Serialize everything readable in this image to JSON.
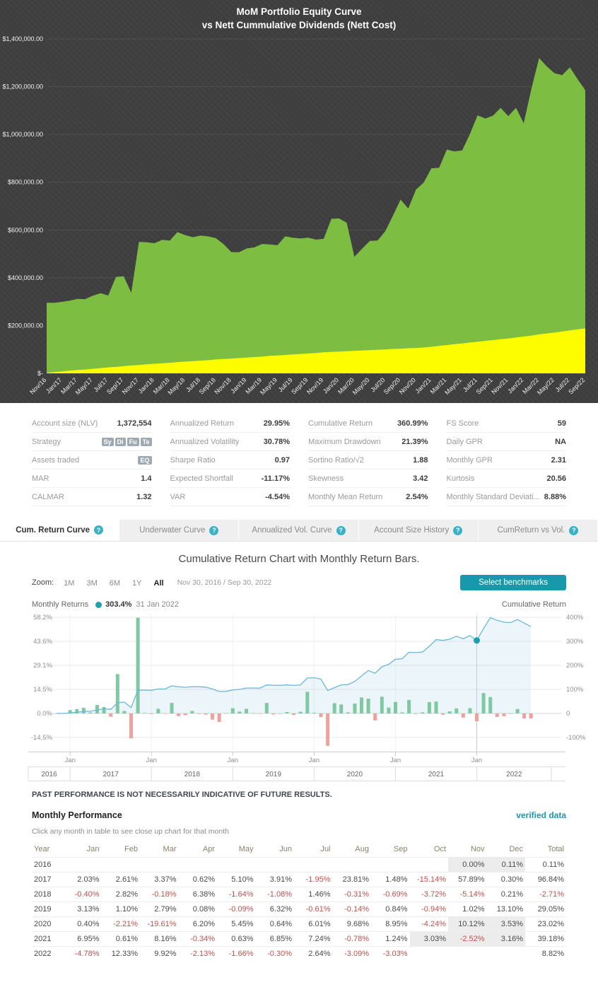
{
  "equity_title": {
    "line1": "MoM Portfolio Equity Curve",
    "line2": "vs Nett Cummulative Dividends (Nett Cost)"
  },
  "chart_data": [
    {
      "id": "equity-curve-chart",
      "type": "area",
      "title": "MoM Portfolio Equity Curve vs Nett Cummulative Dividends (Nett Cost)",
      "ylim": [
        0,
        1400000
      ],
      "y_tick_labels": [
        "$1,400,000.00",
        "$1,200,000.00",
        "$1,000,000.00",
        "$800,000.00",
        "$600,000.00",
        "$400,000.00",
        "$200,000.00",
        "$-"
      ],
      "x_labels_shown": [
        "Nov/16",
        "Jan/17",
        "Mar/17",
        "May/17",
        "Jul/17",
        "Sep/17",
        "Nov/17",
        "Jan/18",
        "Mar/18",
        "May/18",
        "Jul/18",
        "Sep/18",
        "Nov/18",
        "Jan/19",
        "Mar/19",
        "May/19",
        "Jul/19",
        "Sep/19",
        "Nov/19",
        "Jan/20",
        "Mar/20",
        "May/20",
        "Jul/20",
        "Sep/20",
        "Nov/20",
        "Jan/21",
        "Mar/21",
        "May/21",
        "Jul/21",
        "Sep/21",
        "Nov/21",
        "Jan/22",
        "Mar/22",
        "May/22",
        "Jul/22",
        "Sep/22"
      ],
      "interval": "monthly",
      "series": [
        {
          "name": "Portfolio Equity",
          "color": "#7cbd42",
          "values_k": [
            295.7,
            295.1,
            299.1,
            304.1,
            311.6,
            310.6,
            325.1,
            335.5,
            325.5,
            403.3,
            406.7,
            337.5,
            550.1,
            548.8,
            544.5,
            558.9,
            555.9,
            591.1,
            578.7,
            569.9,
            576.9,
            573.0,
            565.7,
            540.4,
            507.6,
            506.8,
            522.6,
            527.1,
            541.7,
            539.2,
            536.7,
            573.3,
            567.4,
            564.5,
            567.9,
            559.8,
            563.4,
            646.7,
            648.6,
            630.3,
            487.5,
            521.5,
            554.2,
            556.3,
            594.7,
            659.9,
            727.2,
            689.9,
            769.4,
            798.3,
            858.3,
            860.2,
            936.8,
            929.2,
            932.8,
            1001.3,
            1080.1,
            1066.7,
            1078.6,
            1111.5,
            1076.9,
            1111.5,
            1047.2,
            1191.3,
            1320.2,
            1284.6,
            1256.5,
            1248.2,
            1280.8,
            1231.6,
            1184.7
          ]
        },
        {
          "name": "Nett Cummulative Dividends",
          "color": "#fdfd00",
          "values_k": [
            2,
            5,
            8,
            11,
            14,
            16,
            19,
            22,
            25,
            27,
            30,
            33,
            35,
            38,
            40,
            42,
            44,
            47,
            49,
            51,
            53,
            55,
            58,
            60,
            62,
            64,
            66,
            68,
            70,
            73,
            75,
            77,
            79,
            81,
            83,
            85,
            88,
            90,
            91,
            93,
            94,
            96,
            97,
            99,
            100,
            102,
            103,
            105,
            106,
            108,
            111,
            115,
            118,
            122,
            125,
            129,
            132,
            136,
            139,
            143,
            146,
            150,
            154,
            158,
            163,
            167,
            171,
            175,
            180,
            184,
            188
          ]
        }
      ]
    },
    {
      "id": "cumulative-return-chart",
      "type": "bar+line",
      "title": "Cumulative Return Chart with Monthly Return Bars.",
      "bar_series_name": "Monthly Returns",
      "line_series_name": "Cumulative Return",
      "bar_values_pct": [
        0.0,
        0.11,
        2.03,
        2.61,
        3.37,
        0.62,
        5.1,
        3.91,
        -1.95,
        23.81,
        1.48,
        -15.14,
        57.89,
        0.3,
        -0.4,
        2.82,
        -0.18,
        6.38,
        -1.64,
        -1.08,
        1.46,
        -0.31,
        -0.69,
        -3.72,
        -5.14,
        0.21,
        3.13,
        1.1,
        2.79,
        0.08,
        -0.09,
        6.32,
        -0.61,
        -0.14,
        0.84,
        -0.94,
        1.02,
        13.1,
        0.4,
        -2.21,
        -19.61,
        6.2,
        5.45,
        0.64,
        6.01,
        9.68,
        8.95,
        -4.24,
        10.12,
        3.53,
        6.95,
        0.61,
        8.16,
        -0.34,
        0.63,
        6.85,
        7.24,
        -0.78,
        1.24,
        3.03,
        -2.52,
        3.16,
        -4.78,
        12.33,
        9.92,
        -2.13,
        -1.66,
        -0.3,
        2.64,
        -3.09,
        -3.03
      ],
      "line_values_pct": [
        0.0,
        0.1,
        2.1,
        4.8,
        8.3,
        9.0,
        14.6,
        19.1,
        16.7,
        44.5,
        46.7,
        24.5,
        96.5,
        97.1,
        96.3,
        101.8,
        101.5,
        114.3,
        110.8,
        108.5,
        111.6,
        110.9,
        109.5,
        101.7,
        91.3,
        91.7,
        97.7,
        99.9,
        105.5,
        105.6,
        105.4,
        118.4,
        117.1,
        116.8,
        118.6,
        116.6,
        118.8,
        147.4,
        148.4,
        142.9,
        95.3,
        107.4,
        118.7,
        120.1,
        133.3,
        155.9,
        178.8,
        167.0,
        194.0,
        204.4,
        225.6,
        227.5,
        254.3,
        253.1,
        255.3,
        279.6,
        307.1,
        303.9,
        308.9,
        321.3,
        310.7,
        323.7,
        303.4,
        353.2,
        398.1,
        387.5,
        379.4,
        378.0,
        390.6,
        375.5,
        361.1
      ],
      "left_axis": {
        "labels": [
          "58.2%",
          "43.6%",
          "29.1%",
          "14.5%",
          "0.0%",
          "-14.5%"
        ],
        "values": [
          58.2,
          43.6,
          29.1,
          14.5,
          0,
          -14.5
        ]
      },
      "right_axis": {
        "labels": [
          "400%",
          "300%",
          "200%",
          "100%",
          "0",
          "-100%"
        ],
        "values": [
          400,
          300,
          200,
          100,
          0,
          -100
        ]
      },
      "x_axis": {
        "tick_label": "Jan",
        "years": [
          "2016",
          "2017",
          "2018",
          "2019",
          "2020",
          "2021",
          "2022"
        ],
        "jan_indices": [
          2,
          14,
          26,
          38,
          50,
          62
        ]
      },
      "marker": {
        "index": 62,
        "value_label": "303.4%",
        "date_label": "31 Jan 2022"
      },
      "colors": {
        "bar_positive": "#7fc8a2",
        "bar_negative": "#f2a09a",
        "line": "#6cb8d8",
        "area": "rgba(120,190,220,0.15)",
        "marker": "#1d9fb0"
      }
    }
  ],
  "stats": {
    "columns": [
      {
        "rows": [
          {
            "label": "Account size (NLV)",
            "value": "1,372,554"
          },
          {
            "label": "Strategy",
            "badges": [
              "Sy",
              "Di",
              "Fu",
              "Te"
            ]
          },
          {
            "label": "Assets traded",
            "badges": [
              "EQ"
            ]
          },
          {
            "label": "MAR",
            "value": "1.4"
          },
          {
            "label": "CALMAR",
            "value": "1.32"
          }
        ]
      },
      {
        "rows": [
          {
            "label": "Annualized Return",
            "value": "29.95%"
          },
          {
            "label": "Annualized Volatility",
            "value": "30.78%"
          },
          {
            "label": "Sharpe Ratio",
            "value": "0.97"
          },
          {
            "label": "Expected Shortfall",
            "value": "-11.17%"
          },
          {
            "label": "VAR",
            "value": "-4.54%"
          }
        ]
      },
      {
        "rows": [
          {
            "label": "Cumulative Return",
            "value": "360.99%"
          },
          {
            "label": "Maximum Drawdown",
            "value": "21.39%"
          },
          {
            "label": "Sortino Ratio/√2",
            "value": "1.88"
          },
          {
            "label": "Skewness",
            "value": "3.42"
          },
          {
            "label": "Monthly Mean Return",
            "value": "2.54%"
          }
        ]
      },
      {
        "rows": [
          {
            "label": "FS Score",
            "value": "59"
          },
          {
            "label": "Daily GPR",
            "value": "NA"
          },
          {
            "label": "Monthly GPR",
            "value": "2.31"
          },
          {
            "label": "Kurtosis",
            "value": "20.56"
          },
          {
            "label": "Monthly Standard Deviati...",
            "value": "8.88%"
          }
        ]
      }
    ]
  },
  "tabs": [
    {
      "label": "Cum. Return Curve",
      "active": true
    },
    {
      "label": "Underwater Curve",
      "active": false
    },
    {
      "label": "Annualized Vol. Curve",
      "active": false
    },
    {
      "label": "Account Size History",
      "active": false
    },
    {
      "label": "CumReturn vs Vol.",
      "active": false
    }
  ],
  "icons": {
    "help_glyph": "?"
  },
  "section_title": "Cumulative Return Chart with Monthly Return Bars.",
  "zoom": {
    "label": "Zoom:",
    "options": [
      {
        "label": "1M",
        "active": false
      },
      {
        "label": "3M",
        "active": false
      },
      {
        "label": "6M",
        "active": false
      },
      {
        "label": "1Y",
        "active": false
      },
      {
        "label": "All",
        "active": true
      }
    ],
    "range": "Nov 30, 2016 / Sep 30, 2022",
    "benchmarks_button": "Select benchmarks"
  },
  "legend": {
    "left_label": "Monthly Returns",
    "marker_value": "303.4%",
    "marker_date": "31 Jan 2022",
    "right_label": "Cumulative Return"
  },
  "disclaimer": "PAST PERFORMANCE IS NOT NECESSARILY INDICATIVE OF FUTURE RESULTS.",
  "monthly_performance": {
    "title": "Monthly Performance",
    "verified": "verified data",
    "subtitle": "Click any month in table to see close up chart for that month",
    "columns": [
      "Year",
      "Jan",
      "Feb",
      "Mar",
      "Apr",
      "May",
      "Jun",
      "Jul",
      "Aug",
      "Sep",
      "Oct",
      "Nov",
      "Dec",
      "Total"
    ],
    "rows": [
      {
        "year": "2016",
        "values": [
          "",
          "",
          "",
          "",
          "",
          "",
          "",
          "",
          "",
          "",
          "0.00%",
          "0.11%"
        ],
        "total": "0.11%",
        "shaded": [
          10,
          11
        ]
      },
      {
        "year": "2017",
        "values": [
          "2.03%",
          "2.61%",
          "3.37%",
          "0.62%",
          "5.10%",
          "3.91%",
          "-1.95%",
          "23.81%",
          "1.48%",
          "-15.14%",
          "57.89%",
          "0.30%"
        ],
        "total": "96.84%",
        "shaded": []
      },
      {
        "year": "2018",
        "values": [
          "-0.40%",
          "2.82%",
          "-0.18%",
          "6.38%",
          "-1.64%",
          "-1.08%",
          "1.46%",
          "-0.31%",
          "-0.69%",
          "-3.72%",
          "-5.14%",
          "0.21%"
        ],
        "total": "-2.71%",
        "shaded": []
      },
      {
        "year": "2019",
        "values": [
          "3.13%",
          "1.10%",
          "2.79%",
          "0.08%",
          "-0.09%",
          "6.32%",
          "-0.61%",
          "-0.14%",
          "0.84%",
          "-0.94%",
          "1.02%",
          "13.10%"
        ],
        "total": "29.05%",
        "shaded": []
      },
      {
        "year": "2020",
        "values": [
          "0.40%",
          "-2.21%",
          "-19.61%",
          "6.20%",
          "5.45%",
          "0.64%",
          "6.01%",
          "9.68%",
          "8.95%",
          "-4.24%",
          "10.12%",
          "3.53%"
        ],
        "total": "23.02%",
        "shaded": [
          10,
          11
        ]
      },
      {
        "year": "2021",
        "values": [
          "6.95%",
          "0.61%",
          "8.16%",
          "-0.34%",
          "0.63%",
          "6.85%",
          "7.24%",
          "-0.78%",
          "1.24%",
          "3.03%",
          "-2.52%",
          "3.16%"
        ],
        "total": "39.18%",
        "shaded": [
          9,
          10,
          11
        ]
      },
      {
        "year": "2022",
        "values": [
          "-4.78%",
          "12.33%",
          "9.92%",
          "-2.13%",
          "-1.66%",
          "-0.30%",
          "2.64%",
          "-3.09%",
          "-3.03%",
          "",
          "",
          ""
        ],
        "total": "8.82%",
        "shaded": []
      }
    ]
  },
  "colors": {
    "accent_teal": "#1898ab",
    "negative_red": "#c0504d",
    "equity_green": "#7cbd42",
    "dividend_yellow": "#fdfd00",
    "dark_background": "#3e3e3e"
  }
}
